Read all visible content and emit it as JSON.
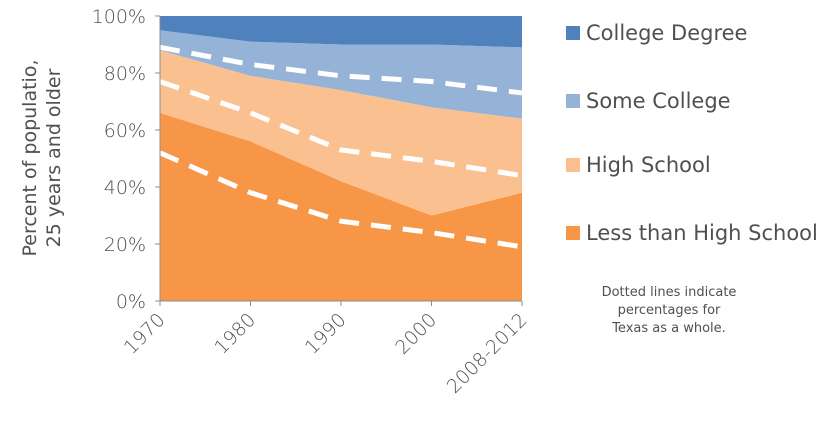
{
  "chart_data": {
    "type": "area",
    "stacked": true,
    "categories": [
      "1970",
      "1980",
      "1990",
      "2000",
      "2008-2012"
    ],
    "ylabel_lines": [
      "Percent of populatio,",
      "25 years and older"
    ],
    "ylim": [
      0,
      100
    ],
    "yticks": [
      "0%",
      "20%",
      "40%",
      "60%",
      "80%",
      "100%"
    ],
    "grid": false,
    "legend_position": "right",
    "series": [
      {
        "name": "Less than High School",
        "color": "#F79646",
        "values": [
          66,
          56,
          42,
          30,
          38
        ]
      },
      {
        "name": "High School",
        "color": "#FAC090",
        "values": [
          22,
          23,
          32,
          38,
          26
        ]
      },
      {
        "name": "Some College",
        "color": "#95B3D7",
        "values": [
          7,
          12,
          16,
          22,
          25
        ]
      },
      {
        "name": "College Degree",
        "color": "#4F81BD",
        "values": [
          5,
          9,
          10,
          10,
          11
        ]
      }
    ],
    "texas_lines": [
      {
        "values": [
          52,
          38,
          28,
          24,
          19
        ]
      },
      {
        "values": [
          77,
          66,
          53,
          49,
          44
        ]
      },
      {
        "values": [
          89,
          83,
          79,
          77,
          73
        ]
      }
    ],
    "annotation": [
      "Dotted lines indicate",
      "percentages for",
      "Texas as a whole."
    ]
  }
}
